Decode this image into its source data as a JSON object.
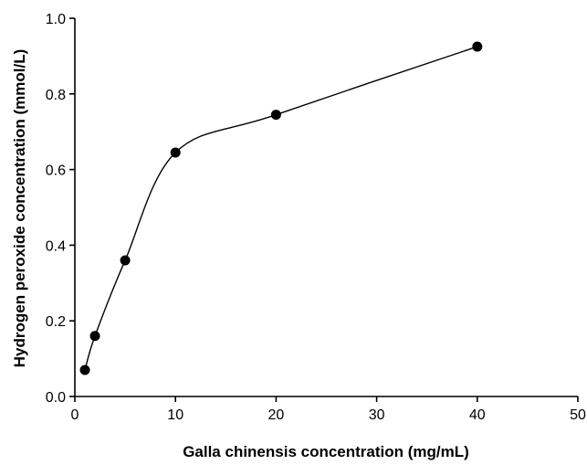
{
  "chart_data": {
    "type": "line",
    "title": "",
    "xlabel": "Galla chinensis concentration (mg/mL)",
    "ylabel": "Hydrogen peroxide concentration (mmol/L)",
    "xlim": [
      0,
      50
    ],
    "ylim": [
      0,
      1.0
    ],
    "xticks": [
      0,
      10,
      20,
      30,
      40,
      50
    ],
    "yticks": [
      0.0,
      0.2,
      0.4,
      0.6,
      0.8,
      1.0
    ],
    "xtick_labels": [
      "0",
      "10",
      "20",
      "30",
      "40",
      "50"
    ],
    "ytick_labels": [
      "0.0",
      "0.2",
      "0.4",
      "0.6",
      "0.8",
      "1.0"
    ],
    "grid": false,
    "marker_color": "#000000",
    "series": [
      {
        "x": [
          1,
          2,
          5,
          10,
          20,
          40
        ],
        "y": [
          0.07,
          0.16,
          0.36,
          0.645,
          0.745,
          0.925
        ],
        "smooth": true
      }
    ]
  }
}
